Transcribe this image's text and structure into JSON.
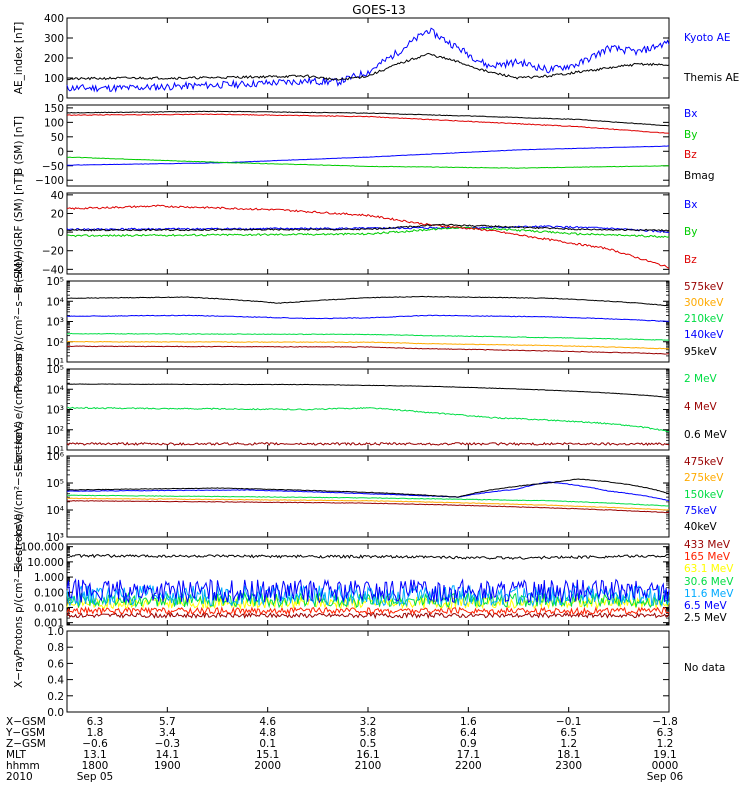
{
  "title": "GOES-13",
  "chart_data": [
    {
      "type": "line",
      "ylabel": "AE_index [nT]",
      "ylim": [
        0,
        400
      ],
      "yscale": "linear",
      "yticks": [
        0,
        100,
        200,
        300,
        400
      ],
      "ytick_labels": [
        "0",
        "100",
        "200",
        "300",
        "400"
      ],
      "legend_placement": "right",
      "series": [
        {
          "name": "Kyoto AE",
          "color": "#0000ff",
          "noise": 18,
          "seed": 11,
          "x": [
            0,
            0.1,
            0.2,
            0.3,
            0.4,
            0.45,
            0.5,
            0.55,
            0.6,
            0.65,
            0.7,
            0.75,
            0.8,
            0.85,
            0.9,
            0.95,
            1.0
          ],
          "y": [
            50,
            50,
            60,
            70,
            85,
            80,
            130,
            230,
            340,
            250,
            160,
            180,
            140,
            170,
            250,
            230,
            280
          ]
        },
        {
          "name": "Themis AE",
          "color": "#000000",
          "noise": 6,
          "seed": 21,
          "x": [
            0,
            0.1,
            0.2,
            0.3,
            0.4,
            0.45,
            0.5,
            0.55,
            0.6,
            0.65,
            0.7,
            0.75,
            0.8,
            0.85,
            0.9,
            0.95,
            1.0
          ],
          "y": [
            95,
            100,
            100,
            105,
            110,
            90,
            110,
            170,
            220,
            180,
            130,
            100,
            110,
            130,
            150,
            170,
            165
          ]
        }
      ]
    },
    {
      "type": "line",
      "ylabel": "B (SM) [nT]",
      "ylim": [
        -120,
        160
      ],
      "yscale": "linear",
      "yticks": [
        -100,
        -50,
        0,
        50,
        100,
        150
      ],
      "ytick_labels": [
        "−100",
        "−50",
        "0",
        "50",
        "100",
        "150"
      ],
      "legend_placement": "right",
      "series": [
        {
          "name": "Bx",
          "color": "#0000ff",
          "noise": 0.6,
          "seed": 31,
          "x": [
            0,
            0.25,
            0.5,
            0.75,
            1.0
          ],
          "y": [
            -48,
            -40,
            -20,
            5,
            18
          ]
        },
        {
          "name": "By",
          "color": "#00cc00",
          "noise": 0.8,
          "seed": 32,
          "x": [
            0,
            0.25,
            0.5,
            0.75,
            1.0
          ],
          "y": [
            -20,
            -38,
            -52,
            -58,
            -50
          ]
        },
        {
          "name": "Bz",
          "color": "#dd0000",
          "noise": 1.2,
          "seed": 33,
          "x": [
            0,
            0.25,
            0.5,
            0.7,
            0.85,
            1.0
          ],
          "y": [
            125,
            128,
            120,
            100,
            85,
            62
          ]
        },
        {
          "name": "Bmag",
          "color": "#000000",
          "noise": 1.0,
          "seed": 34,
          "x": [
            0,
            0.25,
            0.5,
            0.7,
            0.85,
            1.0
          ],
          "y": [
            133,
            138,
            132,
            120,
            110,
            88
          ]
        }
      ]
    },
    {
      "type": "line",
      "ylabel": "B (SM)−IGRF (SM) [nT]",
      "ylim": [
        -45,
        42
      ],
      "yscale": "linear",
      "yticks": [
        -40,
        -20,
        0,
        20,
        40
      ],
      "ytick_labels": [
        "−40",
        "−20",
        "0",
        "20",
        "40"
      ],
      "legend_placement": "right",
      "series": [
        {
          "name": "Bx",
          "color": "#0000ff",
          "noise": 1.0,
          "seed": 41,
          "x": [
            0,
            0.5,
            0.7,
            0.8,
            0.9,
            1.0
          ],
          "y": [
            3,
            4,
            5,
            6,
            4,
            0
          ]
        },
        {
          "name": "By",
          "color": "#00cc00",
          "noise": 1.0,
          "seed": 42,
          "x": [
            0,
            0.5,
            0.65,
            0.75,
            0.85,
            1.0
          ],
          "y": [
            -4,
            -2,
            5,
            2,
            -2,
            -5
          ]
        },
        {
          "name": "Bz",
          "color": "#dd0000",
          "noise": 1.0,
          "seed": 43,
          "x": [
            0,
            0.15,
            0.35,
            0.5,
            0.6,
            0.7,
            0.8,
            0.9,
            1.0
          ],
          "y": [
            25,
            28,
            24,
            18,
            8,
            2,
            -8,
            -18,
            -38
          ]
        },
        {
          "name": "",
          "color": "#000000",
          "noise": 0.8,
          "seed": 44,
          "x": [
            0,
            0.5,
            0.62,
            0.72,
            0.85,
            1.0
          ],
          "y": [
            2,
            3,
            8,
            6,
            3,
            2
          ]
        }
      ]
    },
    {
      "type": "line",
      "ylabel": "Protons p/(cm²−s−sr−keV)",
      "ylim": [
        10,
        100000
      ],
      "yscale": "log",
      "yticks": [
        10,
        100,
        1000,
        10000,
        100000
      ],
      "ytick_labels": [
        "10¹",
        "10²",
        "10³",
        "10⁴",
        "10⁵"
      ],
      "legend_placement": "right",
      "series": [
        {
          "name": "575keV",
          "color": "#990000",
          "noise": 0.015,
          "seed": 51,
          "x": [
            0,
            0.5,
            0.6,
            0.8,
            1.0
          ],
          "y": [
            60,
            55,
            45,
            35,
            25
          ]
        },
        {
          "name": "300keV",
          "color": "#ffaa00",
          "noise": 0.015,
          "seed": 52,
          "x": [
            0,
            0.5,
            0.6,
            0.8,
            1.0
          ],
          "y": [
            100,
            95,
            80,
            65,
            45
          ]
        },
        {
          "name": "210keV",
          "color": "#00dd44",
          "noise": 0.015,
          "seed": 53,
          "x": [
            0,
            0.5,
            0.6,
            0.8,
            1.0
          ],
          "y": [
            250,
            230,
            200,
            160,
            120
          ]
        },
        {
          "name": "140keV",
          "color": "#0000ff",
          "noise": 0.015,
          "seed": 54,
          "x": [
            0,
            0.2,
            0.4,
            0.5,
            0.6,
            0.8,
            1.0
          ],
          "y": [
            1800,
            2000,
            1400,
            1500,
            2000,
            1700,
            1000
          ]
        },
        {
          "name": "95keV",
          "color": "#000000",
          "noise": 0.015,
          "seed": 55,
          "x": [
            0,
            0.2,
            0.35,
            0.4,
            0.5,
            0.6,
            0.8,
            1.0
          ],
          "y": [
            14000,
            16000,
            8000,
            10000,
            15000,
            17000,
            14000,
            6000
          ]
        }
      ]
    },
    {
      "type": "line",
      "ylabel": "Electrons e/(cm²−s−sr)",
      "ylim": [
        10,
        100000
      ],
      "yscale": "log",
      "yticks": [
        10,
        100,
        1000,
        10000,
        100000
      ],
      "ytick_labels": [
        "10¹",
        "10²",
        "10³",
        "10⁴",
        "10⁵"
      ],
      "legend_placement": "right",
      "series": [
        {
          "name": "4 MeV",
          "color": "#990000",
          "noise": 0.06,
          "seed": 61,
          "x": [
            0,
            0.5,
            1.0
          ],
          "y": [
            20,
            20,
            20
          ]
        },
        {
          "name": "2 MeV",
          "color": "#00dd44",
          "noise": 0.03,
          "seed": 62,
          "x": [
            0,
            0.2,
            0.4,
            0.5,
            0.6,
            0.7,
            0.8,
            0.9,
            1.0
          ],
          "y": [
            1200,
            1100,
            1000,
            1200,
            700,
            400,
            300,
            200,
            80
          ]
        },
        {
          "name": "0.6 MeV",
          "color": "#000000",
          "noise": 0.01,
          "seed": 63,
          "x": [
            0,
            0.4,
            0.6,
            0.8,
            1.0
          ],
          "y": [
            18000,
            17000,
            14000,
            9000,
            4000
          ]
        }
      ]
    },
    {
      "type": "line",
      "ylabel": "Electrons e/(cm²−s−sr−keV)",
      "ylim": [
        1000,
        1000000
      ],
      "yscale": "log",
      "yticks": [
        1000,
        10000,
        100000,
        1000000
      ],
      "ytick_labels": [
        "10³",
        "10⁴",
        "10⁵",
        "10⁶"
      ],
      "legend_placement": "right",
      "series": [
        {
          "name": "475keV",
          "color": "#990000",
          "noise": 0.01,
          "seed": 71,
          "x": [
            0,
            0.5,
            0.8,
            1.0
          ],
          "y": [
            22000,
            18000,
            12000,
            8000
          ]
        },
        {
          "name": "275keV",
          "color": "#ffaa00",
          "noise": 0.01,
          "seed": 72,
          "x": [
            0,
            0.5,
            0.8,
            1.0
          ],
          "y": [
            27000,
            22000,
            15000,
            10000
          ]
        },
        {
          "name": "150keV",
          "color": "#00dd44",
          "noise": 0.01,
          "seed": 73,
          "x": [
            0,
            0.5,
            0.8,
            1.0
          ],
          "y": [
            35000,
            28000,
            22000,
            14000
          ]
        },
        {
          "name": "75keV",
          "color": "#0000ff",
          "noise": 0.01,
          "seed": 74,
          "x": [
            0,
            0.3,
            0.5,
            0.65,
            0.75,
            0.8,
            0.9,
            1.0
          ],
          "y": [
            50000,
            55000,
            40000,
            30000,
            60000,
            110000,
            50000,
            22000
          ]
        },
        {
          "name": "40keV",
          "color": "#000000",
          "noise": 0.01,
          "seed": 75,
          "x": [
            0,
            0.25,
            0.5,
            0.65,
            0.8,
            0.85,
            0.9,
            1.0
          ],
          "y": [
            55000,
            65000,
            45000,
            30000,
            100000,
            140000,
            110000,
            40000
          ]
        }
      ]
    },
    {
      "type": "line",
      "ylabel": "Protons p/(cm²−s−sr−keV)",
      "ylim": [
        0.0007,
        150
      ],
      "yscale": "log",
      "yticks": [
        0.001,
        0.01,
        0.1,
        1,
        10,
        100
      ],
      "ytick_labels": [
        "0.001",
        "0.010",
        "0.100",
        "1.000",
        "10.000",
        "100.000"
      ],
      "legend_placement": "right",
      "series": [
        {
          "name": "433 MeV",
          "color": "#990000",
          "noise": 0.05,
          "seed": 81,
          "x": [
            0,
            1.0
          ],
          "y": [
            0.003,
            0.003
          ]
        },
        {
          "name": "165 MeV",
          "color": "#ff2200",
          "noise": 0.07,
          "seed": 82,
          "x": [
            0,
            1.0
          ],
          "y": [
            0.006,
            0.006
          ]
        },
        {
          "name": "63.1 MeV",
          "color": "#ffff00",
          "noise": 0.12,
          "seed": 83,
          "x": [
            0,
            1.0
          ],
          "y": [
            0.02,
            0.02
          ]
        },
        {
          "name": "30.6 MeV",
          "color": "#00dd44",
          "noise": 0.15,
          "seed": 84,
          "x": [
            0,
            1.0
          ],
          "y": [
            0.03,
            0.03
          ]
        },
        {
          "name": "11.6 MeV",
          "color": "#00aaff",
          "noise": 0.22,
          "seed": 85,
          "x": [
            0,
            1.0
          ],
          "y": [
            0.06,
            0.06
          ]
        },
        {
          "name": "6.5 MeV",
          "color": "#0000ff",
          "noise": 0.25,
          "seed": 86,
          "x": [
            0,
            1.0
          ],
          "y": [
            0.12,
            0.12
          ]
        },
        {
          "name": "2.5 MeV",
          "color": "#000000",
          "noise": 0.03,
          "seed": 87,
          "x": [
            0,
            0.5,
            0.75,
            1.0
          ],
          "y": [
            25,
            22,
            18,
            25
          ]
        }
      ]
    },
    {
      "type": "line",
      "ylabel": "X−ray",
      "ylim": [
        0,
        1.0
      ],
      "yscale": "linear",
      "yticks": [
        0,
        0.2,
        0.4,
        0.6,
        0.8,
        1.0
      ],
      "ytick_labels": [
        "0.0",
        "0.2",
        "0.4",
        "0.6",
        "0.8",
        "1.0"
      ],
      "legend_placement": "right",
      "note": "No data",
      "series": []
    }
  ],
  "x_axis": {
    "row_labels": [
      "X−GSM",
      "Y−GSM",
      "Z−GSM",
      "MLT",
      "hhmm",
      "2010"
    ],
    "columns": [
      {
        "values": [
          "6.3",
          "1.8",
          "−0.6",
          "13.1",
          "1800",
          "Sep 05"
        ]
      },
      {
        "values": [
          "5.7",
          "3.4",
          "−0.3",
          "14.1",
          "1900",
          ""
        ]
      },
      {
        "values": [
          "4.6",
          "4.8",
          "0.1",
          "15.1",
          "2000",
          ""
        ]
      },
      {
        "values": [
          "3.2",
          "5.8",
          "0.5",
          "16.1",
          "2100",
          ""
        ]
      },
      {
        "values": [
          "1.6",
          "6.4",
          "0.9",
          "17.1",
          "2200",
          ""
        ]
      },
      {
        "values": [
          "−0.1",
          "6.5",
          "1.2",
          "18.1",
          "2300",
          ""
        ]
      },
      {
        "values": [
          "−1.8",
          "6.3",
          "1.2",
          "19.1",
          "0000",
          "Sep 06"
        ]
      }
    ]
  }
}
